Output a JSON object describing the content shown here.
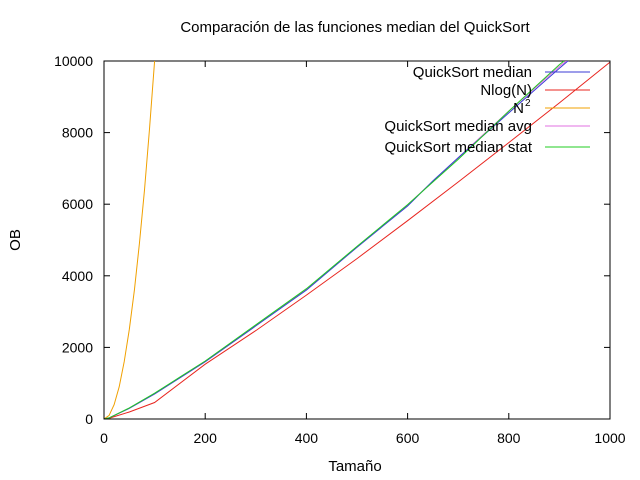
{
  "chart_data": {
    "type": "line",
    "title": "Comparación de las funciones median del QuickSort",
    "xlabel": "Tamaño",
    "ylabel": "OB",
    "xlim": [
      0,
      1000
    ],
    "ylim": [
      0,
      10000
    ],
    "xticks": [
      0,
      200,
      400,
      600,
      800,
      1000
    ],
    "yticks": [
      0,
      2000,
      4000,
      6000,
      8000,
      10000
    ],
    "legend_position": "top-right",
    "grid": false,
    "series": [
      {
        "name": "QuickSort median",
        "color": "#3b3bd6",
        "x": [
          0,
          10,
          50,
          100,
          150,
          200,
          300,
          400,
          500,
          600,
          650,
          700,
          800,
          900,
          950
        ],
        "y": [
          0,
          30,
          300,
          700,
          1150,
          1600,
          2600,
          3600,
          4800,
          5950,
          6650,
          7300,
          8550,
          9800,
          10400
        ]
      },
      {
        "name": "Nlog(N)",
        "color": "#e8251f",
        "x": [
          0,
          10,
          50,
          100,
          200,
          300,
          400,
          500,
          600,
          700,
          800,
          900,
          1000
        ],
        "y": [
          0,
          23,
          195,
          460,
          1530,
          2470,
          3460,
          4480,
          5540,
          6620,
          7720,
          8830,
          9970
        ]
      },
      {
        "name": "N^2",
        "color": "#f0a000",
        "x": [
          0,
          10,
          20,
          30,
          40,
          50,
          60,
          70,
          80,
          90,
          100,
          102
        ],
        "y": [
          0,
          100,
          400,
          900,
          1600,
          2500,
          3600,
          4900,
          6400,
          8100,
          10000,
          10400
        ]
      },
      {
        "name": "QuickSort median avg",
        "color": "#e070e0",
        "x": [
          0,
          10,
          50,
          100,
          150,
          200,
          300,
          400,
          500,
          600,
          700,
          800,
          900,
          950
        ],
        "y": [
          0,
          30,
          300,
          700,
          1150,
          1600,
          2600,
          3620,
          4800,
          5980,
          7300,
          8600,
          9850,
          10400
        ]
      },
      {
        "name": "QuickSort median stat",
        "color": "#22cc22",
        "x": [
          0,
          10,
          50,
          100,
          150,
          200,
          300,
          400,
          500,
          600,
          700,
          800,
          900,
          945
        ],
        "y": [
          0,
          32,
          310,
          720,
          1170,
          1620,
          2630,
          3640,
          4820,
          5990,
          7250,
          8600,
          9900,
          10400
        ]
      }
    ]
  },
  "legend": {
    "labels": [
      "QuickSort median",
      "Nlog(N)",
      "N",
      "QuickSort median avg",
      "QuickSort median stat"
    ],
    "n2_superscript": "2"
  }
}
